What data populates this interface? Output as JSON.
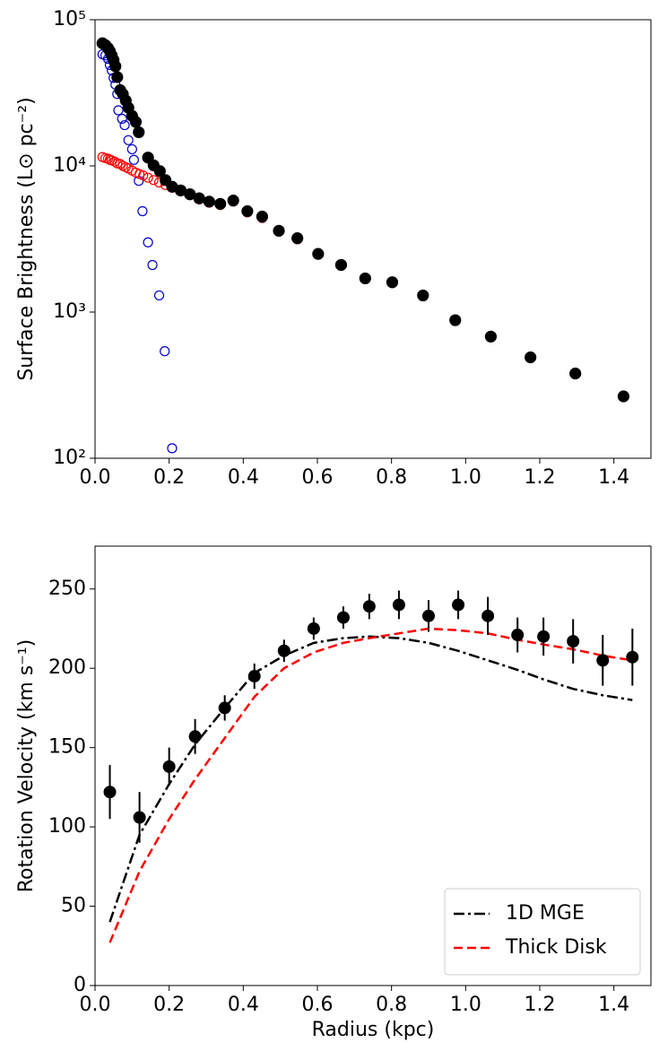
{
  "chart_data": [
    {
      "type": "scatter",
      "ylabel": "Surface Brightness (L⊙ pc⁻²)",
      "yscale": "log",
      "xlim": [
        0,
        1.5
      ],
      "xticks": [
        {
          "value": 0,
          "label": "0.0"
        },
        0.2,
        0.4,
        0.6,
        0.8,
        {
          "value": 1,
          "label": "1.0"
        },
        1.2,
        1.4
      ],
      "ylim": [
        100,
        100000
      ],
      "yticks": [
        {
          "value": 100,
          "label": "10²"
        },
        {
          "value": 1000,
          "label": "10³"
        },
        {
          "value": 10000,
          "label": "10⁴"
        },
        {
          "value": 100000,
          "label": "10⁵"
        }
      ],
      "series": [
        {
          "color": "#0000cc",
          "marker": "open",
          "x": [
            0.02,
            0.028,
            0.035,
            0.04,
            0.045,
            0.05,
            0.055,
            0.06,
            0.063,
            0.073,
            0.08,
            0.09,
            0.1,
            0.105,
            0.118,
            0.128,
            0.143,
            0.155,
            0.173,
            0.188,
            0.208
          ],
          "values": [
            58000,
            57000,
            54000,
            49000,
            45000,
            40000,
            36000,
            31000,
            24000,
            21000,
            19000,
            15000,
            13000,
            11000,
            7900,
            4900,
            3000,
            2100,
            1300,
            540,
            117
          ]
        },
        {
          "color": "#ff0000",
          "marker": "open",
          "x": [
            0.02,
            0.028,
            0.035,
            0.04,
            0.045,
            0.053,
            0.06,
            0.068,
            0.075,
            0.083,
            0.09,
            0.1,
            0.11,
            0.12,
            0.13,
            0.143,
            0.158,
            0.173,
            0.19,
            0.208,
            0.231,
            0.256,
            0.281,
            0.308,
            0.338,
            0.373,
            0.411,
            0.451,
            0.496,
            0.546,
            0.602,
            0.664,
            0.729,
            0.802,
            0.885,
            0.972,
            1.068,
            1.175,
            1.296,
            1.426
          ],
          "values": [
            11500,
            11300,
            11200,
            11000,
            10900,
            10700,
            10400,
            10300,
            10000,
            9800,
            9600,
            9300,
            9000,
            8800,
            8600,
            8300,
            8000,
            7700,
            7400,
            7100,
            6700,
            6300,
            5900,
            5600,
            5400,
            5700,
            4800,
            4400,
            3550,
            3150,
            2480,
            2080,
            1690,
            1580,
            1280,
            870,
            670,
            485,
            375,
            262
          ]
        },
        {
          "color": "#000000",
          "marker": "filled",
          "x": [
            0.02,
            0.028,
            0.035,
            0.04,
            0.045,
            0.05,
            0.055,
            0.06,
            0.068,
            0.075,
            0.083,
            0.09,
            0.1,
            0.11,
            0.118,
            0.143,
            0.158,
            0.175,
            0.19,
            0.208,
            0.231,
            0.256,
            0.281,
            0.308,
            0.338,
            0.373,
            0.411,
            0.451,
            0.496,
            0.546,
            0.602,
            0.664,
            0.729,
            0.802,
            0.885,
            0.972,
            1.068,
            1.175,
            1.296,
            1.426
          ],
          "values": [
            69000,
            67000,
            64000,
            61000,
            57000,
            53000,
            48000,
            40500,
            33000,
            31000,
            28000,
            25000,
            22000,
            20000,
            17000,
            11400,
            10100,
            9200,
            8000,
            7200,
            6800,
            6400,
            6000,
            5700,
            5500,
            5800,
            4900,
            4500,
            3600,
            3200,
            2500,
            2100,
            1700,
            1600,
            1300,
            880,
            680,
            490,
            380,
            265
          ]
        }
      ]
    },
    {
      "type": "line",
      "xlabel": "Radius (kpc)",
      "ylabel": "Rotation Velocity (km s⁻¹)",
      "xlim": [
        0,
        1.5
      ],
      "xticks": [
        {
          "value": 0,
          "label": "0.0"
        },
        0.2,
        0.4,
        0.6,
        0.8,
        {
          "value": 1,
          "label": "1.0"
        },
        1.2,
        1.4
      ],
      "ylim": [
        0,
        277
      ],
      "yticks": [
        0,
        50,
        100,
        150,
        200,
        250
      ],
      "legend": "lower right",
      "series": [
        {
          "name": "1D MGE",
          "color": "#000000",
          "style": "dashdot",
          "x": [
            0.04,
            0.12,
            0.2,
            0.27,
            0.35,
            0.43,
            0.51,
            0.59,
            0.67,
            0.74,
            0.82,
            0.9,
            0.98,
            1.06,
            1.14,
            1.21,
            1.29,
            1.37,
            1.45
          ],
          "values": [
            40,
            95,
            127,
            152,
            175,
            197,
            208,
            216,
            219,
            220,
            219,
            216,
            211,
            205,
            199,
            193,
            187,
            183,
            180
          ]
        },
        {
          "name": "Thick Disk",
          "color": "#ff0000",
          "style": "dashed",
          "x": [
            0.04,
            0.12,
            0.2,
            0.27,
            0.35,
            0.43,
            0.51,
            0.59,
            0.67,
            0.74,
            0.82,
            0.9,
            0.98,
            1.06,
            1.14,
            1.21,
            1.29,
            1.37,
            1.45
          ],
          "values": [
            27,
            72,
            105,
            130,
            156,
            182,
            200,
            210,
            216,
            219,
            222,
            225,
            224,
            222,
            218,
            215,
            212,
            208,
            205
          ]
        },
        {
          "color": "#000000",
          "style": "errorbar",
          "x": [
            0.04,
            0.12,
            0.2,
            0.27,
            0.35,
            0.43,
            0.51,
            0.59,
            0.67,
            0.74,
            0.82,
            0.9,
            0.98,
            1.06,
            1.14,
            1.21,
            1.29,
            1.37,
            1.45
          ],
          "values": [
            122,
            106,
            138,
            157,
            175,
            195,
            211,
            225,
            232,
            239,
            240,
            233,
            240,
            233,
            221,
            220,
            217,
            205,
            207
          ],
          "errors": [
            17,
            16,
            12,
            11,
            8,
            8,
            7,
            7,
            7,
            8,
            9,
            10,
            9,
            12,
            11,
            12,
            14,
            16,
            18
          ]
        }
      ]
    }
  ]
}
